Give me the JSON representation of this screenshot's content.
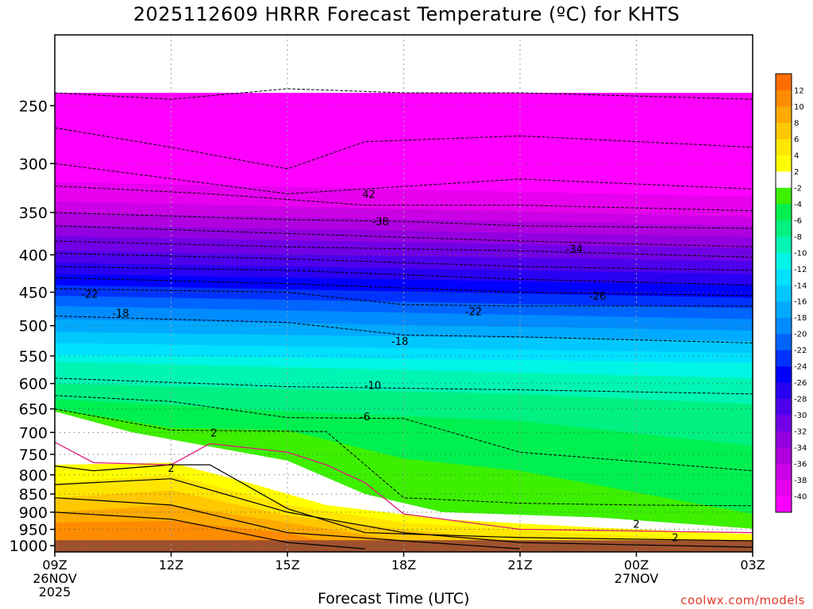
{
  "title": "2025112609 HRRR Forecast Temperature (ºC) for KHTS",
  "xlabel": "Forecast Time (UTC)",
  "credit": "coolwx.com/models",
  "chart_data": {
    "type": "heatmap",
    "title": "2025112609 HRRR Forecast Temperature (ºC) for KHTS",
    "xlabel": "Forecast Time (UTC)",
    "ylabel": "",
    "x_ticks": [
      {
        "value": 0,
        "lines": [
          "09Z",
          "26NOV",
          "2025"
        ]
      },
      {
        "value": 3,
        "lines": [
          "12Z"
        ]
      },
      {
        "value": 6,
        "lines": [
          "15Z"
        ]
      },
      {
        "value": 9,
        "lines": [
          "18Z"
        ]
      },
      {
        "value": 12,
        "lines": [
          "21Z"
        ]
      },
      {
        "value": 15,
        "lines": [
          "00Z",
          "27NOV"
        ]
      },
      {
        "value": 18,
        "lines": [
          "03Z"
        ]
      }
    ],
    "y_ticks": [
      250,
      300,
      350,
      400,
      450,
      500,
      550,
      600,
      650,
      700,
      750,
      800,
      850,
      900,
      950,
      1000
    ],
    "ylim": [
      1020,
      200
    ],
    "y_scale": "log",
    "grid": true,
    "colorbar": [
      {
        "label": "",
        "color": "#ff00ff"
      },
      {
        "label": "-40",
        "color": "#e600ee"
      },
      {
        "label": "-38",
        "color": "#cc00e6"
      },
      {
        "label": "-36",
        "color": "#b000e0"
      },
      {
        "label": "-34",
        "color": "#9300e0"
      },
      {
        "label": "-32",
        "color": "#7200e6"
      },
      {
        "label": "-30",
        "color": "#4e00ec"
      },
      {
        "label": "-28",
        "color": "#2a00f2"
      },
      {
        "label": "-26",
        "color": "#0000ff"
      },
      {
        "label": "-24",
        "color": "#0032ff"
      },
      {
        "label": "-22",
        "color": "#0064ff"
      },
      {
        "label": "-20",
        "color": "#008cff"
      },
      {
        "label": "-18",
        "color": "#00aaff"
      },
      {
        "label": "-16",
        "color": "#00c8ff"
      },
      {
        "label": "-14",
        "color": "#00e0ff"
      },
      {
        "label": "-12",
        "color": "#00f5e6"
      },
      {
        "label": "-10",
        "color": "#00f5b4"
      },
      {
        "label": "-8",
        "color": "#00f082"
      },
      {
        "label": "-6",
        "color": "#00f050"
      },
      {
        "label": "-4",
        "color": "#3cf000"
      },
      {
        "label": "-2",
        "color": "#ffffff"
      },
      {
        "label": "2",
        "color": "#ffff00"
      },
      {
        "label": "4",
        "color": "#ffe600"
      },
      {
        "label": "6",
        "color": "#ffc800"
      },
      {
        "label": "8",
        "color": "#ffaa00"
      },
      {
        "label": "10",
        "color": "#ff8c00"
      },
      {
        "label": "12",
        "color": "#ff6e00"
      }
    ],
    "ground_color": "#a0522d",
    "bands": [
      {
        "lo": -99,
        "color": "#ff00ff",
        "top": [
          [
            0,
            240
          ],
          [
            18,
            240
          ]
        ]
      },
      {
        "lo": -44,
        "color": "#e600ee",
        "top": [
          [
            0,
            318
          ],
          [
            18,
            333
          ]
        ]
      },
      {
        "lo": -40,
        "color": "#cc00e6",
        "top": [
          [
            0,
            338
          ],
          [
            18,
            355
          ]
        ]
      },
      {
        "lo": -38,
        "color": "#b000e0",
        "top": [
          [
            0,
            350
          ],
          [
            18,
            365
          ]
        ]
      },
      {
        "lo": -36,
        "color": "#9300e0",
        "top": [
          [
            0,
            364
          ],
          [
            18,
            378
          ]
        ]
      },
      {
        "lo": -34,
        "color": "#7200e6",
        "top": [
          [
            0,
            377
          ],
          [
            18,
            392
          ]
        ]
      },
      {
        "lo": -32,
        "color": "#4e00ec",
        "top": [
          [
            0,
            395
          ],
          [
            18,
            408
          ]
        ]
      },
      {
        "lo": -30,
        "color": "#2a00f2",
        "top": [
          [
            0,
            410
          ],
          [
            18,
            425
          ]
        ]
      },
      {
        "lo": -28,
        "color": "#0000ff",
        "top": [
          [
            0,
            425
          ],
          [
            18,
            440
          ]
        ]
      },
      {
        "lo": -26,
        "color": "#0032ff",
        "top": [
          [
            0,
            440
          ],
          [
            18,
            458
          ]
        ]
      },
      {
        "lo": -24,
        "color": "#0064ff",
        "top": [
          [
            0,
            455
          ],
          [
            18,
            473
          ]
        ]
      },
      {
        "lo": -22,
        "color": "#008cff",
        "top": [
          [
            0,
            470
          ],
          [
            18,
            490
          ]
        ]
      },
      {
        "lo": -20,
        "color": "#00aaff",
        "top": [
          [
            0,
            490
          ],
          [
            18,
            508
          ]
        ]
      },
      {
        "lo": -18,
        "color": "#00c8ff",
        "top": [
          [
            0,
            510
          ],
          [
            18,
            525
          ]
        ]
      },
      {
        "lo": -16,
        "color": "#00e0ff",
        "top": [
          [
            0,
            528
          ],
          [
            18,
            545
          ]
        ]
      },
      {
        "lo": -14,
        "color": "#00f5e6",
        "top": [
          [
            0,
            548
          ],
          [
            18,
            562
          ]
        ]
      },
      {
        "lo": -12,
        "color": "#00f5b4",
        "top": [
          [
            0,
            560
          ],
          [
            18,
            590
          ]
        ]
      },
      {
        "lo": -10,
        "color": "#00f082",
        "top": [
          [
            0,
            600
          ],
          [
            6,
            610
          ],
          [
            12,
            620
          ],
          [
            18,
            640
          ]
        ]
      },
      {
        "lo": -6,
        "color": "#00f050",
        "top": [
          [
            0,
            630
          ],
          [
            6,
            655
          ],
          [
            12,
            675
          ],
          [
            18,
            730
          ]
        ]
      },
      {
        "lo": -4,
        "color": "#3cf000",
        "top": [
          [
            0,
            650
          ],
          [
            3,
            690
          ],
          [
            6,
            695
          ],
          [
            9,
            760
          ],
          [
            12,
            790
          ],
          [
            18,
            905
          ]
        ]
      },
      {
        "lo": -2,
        "color": "#ffffff",
        "top": [
          [
            0,
            655
          ],
          [
            2,
            700
          ],
          [
            6,
            765
          ],
          [
            8,
            850
          ],
          [
            10,
            900
          ],
          [
            14,
            915
          ],
          [
            18,
            948
          ]
        ]
      },
      {
        "lo": 2,
        "color": "#ffff00",
        "top": [
          [
            0,
            775
          ],
          [
            3,
            770
          ],
          [
            5,
            820
          ],
          [
            7,
            880
          ],
          [
            10,
            920
          ],
          [
            14,
            945
          ],
          [
            18,
            965
          ]
        ]
      },
      {
        "lo": 4,
        "color": "#ffe600",
        "top": [
          [
            0,
            820
          ],
          [
            3,
            800
          ],
          [
            6,
            880
          ],
          [
            9,
            930
          ],
          [
            13,
            960
          ],
          [
            18,
            985
          ]
        ]
      },
      {
        "lo": 6,
        "color": "#ffc800",
        "top": [
          [
            0,
            860
          ],
          [
            3,
            840
          ],
          [
            6,
            910
          ],
          [
            9,
            950
          ],
          [
            12,
            985
          ],
          [
            18,
            1010
          ]
        ]
      },
      {
        "lo": 8,
        "color": "#ffaa00",
        "top": [
          [
            0,
            900
          ],
          [
            3,
            880
          ],
          [
            6,
            930
          ],
          [
            9,
            985
          ],
          [
            12,
            1010
          ],
          [
            18,
            1020
          ]
        ]
      },
      {
        "lo": 10,
        "color": "#ff8c00",
        "top": [
          [
            0,
            930
          ],
          [
            3,
            925
          ],
          [
            6,
            960
          ],
          [
            8,
            1020
          ],
          [
            18,
            1020
          ]
        ]
      }
    ],
    "contours": [
      {
        "level": -48,
        "points": [
          [
            0,
            240
          ],
          [
            3,
            245
          ],
          [
            6,
            237
          ],
          [
            9,
            240
          ],
          [
            12,
            240
          ],
          [
            18,
            245
          ]
        ]
      },
      {
        "level": -46,
        "points": [
          [
            0,
            268
          ],
          [
            3,
            285
          ],
          [
            6,
            305
          ],
          [
            8,
            280
          ],
          [
            12,
            275
          ],
          [
            18,
            285
          ]
        ]
      },
      {
        "level": -44,
        "points": [
          [
            0,
            300
          ],
          [
            6,
            330
          ],
          [
            12,
            315
          ],
          [
            18,
            325
          ]
        ]
      },
      {
        "level": -42,
        "points": [
          [
            0,
            322
          ],
          [
            4,
            330
          ],
          [
            8,
            342
          ],
          [
            12,
            342
          ],
          [
            18,
            348
          ]
        ]
      },
      {
        "level": -38,
        "points": [
          [
            0,
            350
          ],
          [
            6,
            358
          ],
          [
            9,
            360
          ],
          [
            12,
            365
          ],
          [
            18,
            368
          ]
        ]
      },
      {
        "level": -36,
        "points": [
          [
            0,
            365
          ],
          [
            6,
            374
          ],
          [
            12,
            383
          ],
          [
            18,
            390
          ]
        ]
      },
      {
        "level": -34,
        "points": [
          [
            0,
            383
          ],
          [
            6,
            390
          ],
          [
            12,
            395
          ],
          [
            18,
            403
          ]
        ]
      },
      {
        "level": -32,
        "points": [
          [
            0,
            398
          ],
          [
            6,
            405
          ],
          [
            12,
            415
          ],
          [
            18,
            420
          ]
        ]
      },
      {
        "level": -30,
        "points": [
          [
            0,
            415
          ],
          [
            6,
            420
          ],
          [
            12,
            432
          ],
          [
            18,
            440
          ]
        ]
      },
      {
        "level": -26,
        "points": [
          [
            0,
            430
          ],
          [
            6,
            438
          ],
          [
            12,
            450
          ],
          [
            18,
            455
          ]
        ]
      },
      {
        "level": -22,
        "points": [
          [
            0,
            445
          ],
          [
            6,
            450
          ],
          [
            9,
            468
          ],
          [
            12,
            470
          ],
          [
            18,
            470
          ]
        ]
      },
      {
        "level": -18,
        "points": [
          [
            0,
            485
          ],
          [
            6,
            495
          ],
          [
            9,
            515
          ],
          [
            12,
            518
          ],
          [
            18,
            528
          ]
        ]
      },
      {
        "level": -10,
        "points": [
          [
            0,
            590
          ],
          [
            6,
            606
          ],
          [
            12,
            612
          ],
          [
            18,
            620
          ]
        ]
      },
      {
        "level": -6,
        "points": [
          [
            0,
            623
          ],
          [
            3,
            635
          ],
          [
            6,
            668
          ],
          [
            9,
            670
          ],
          [
            12,
            745
          ],
          [
            18,
            790
          ]
        ]
      },
      {
        "level": -4,
        "points": [
          [
            0,
            650
          ],
          [
            3,
            695
          ],
          [
            7,
            698
          ],
          [
            9,
            860
          ],
          [
            12,
            875
          ],
          [
            15,
            880
          ],
          [
            18,
            882
          ]
        ]
      }
    ],
    "solid_contours": [
      {
        "level": 2,
        "points": [
          [
            0,
            778
          ],
          [
            1,
            790
          ],
          [
            3,
            775
          ],
          [
            4,
            775
          ],
          [
            6,
            890
          ],
          [
            8,
            960
          ],
          [
            12,
            975
          ],
          [
            18,
            985
          ]
        ]
      },
      {
        "level": 4,
        "points": [
          [
            0,
            825
          ],
          [
            3,
            810
          ],
          [
            6,
            900
          ],
          [
            9,
            960
          ],
          [
            12,
            990
          ],
          [
            18,
            1005
          ]
        ]
      },
      {
        "level": 6,
        "points": [
          [
            0,
            860
          ],
          [
            3,
            880
          ],
          [
            6,
            960
          ],
          [
            9,
            985
          ],
          [
            12,
            1010
          ]
        ]
      },
      {
        "level": 8,
        "points": [
          [
            0,
            900
          ],
          [
            3,
            920
          ],
          [
            6,
            990
          ],
          [
            8,
            1010
          ]
        ]
      }
    ],
    "freezing_line": [
      [
        0,
        722
      ],
      [
        1,
        770
      ],
      [
        3,
        775
      ],
      [
        4,
        725
      ],
      [
        6,
        745
      ],
      [
        7,
        775
      ],
      [
        8,
        820
      ],
      [
        9,
        905
      ],
      [
        12,
        950
      ],
      [
        15,
        955
      ],
      [
        18,
        960
      ]
    ],
    "contour_labels": [
      {
        "text": "42",
        "x": 8.1,
        "p": 330
      },
      {
        "text": "-38",
        "x": 8.4,
        "p": 360
      },
      {
        "text": "-34",
        "x": 13.4,
        "p": 392
      },
      {
        "text": "-22",
        "x": 0.9,
        "p": 452
      },
      {
        "text": "-26",
        "x": 14.0,
        "p": 455
      },
      {
        "text": "-18",
        "x": 1.7,
        "p": 480
      },
      {
        "text": "-22",
        "x": 10.8,
        "p": 478
      },
      {
        "text": "-18",
        "x": 8.9,
        "p": 525
      },
      {
        "text": "-10",
        "x": 8.2,
        "p": 603
      },
      {
        "text": "-6",
        "x": 8.0,
        "p": 665
      },
      {
        "text": "2",
        "x": 4.1,
        "p": 700
      },
      {
        "text": "2",
        "x": 3.0,
        "p": 783
      },
      {
        "text": "2",
        "x": 15.0,
        "p": 933
      },
      {
        "text": "2",
        "x": 16.0,
        "p": 974
      }
    ]
  }
}
